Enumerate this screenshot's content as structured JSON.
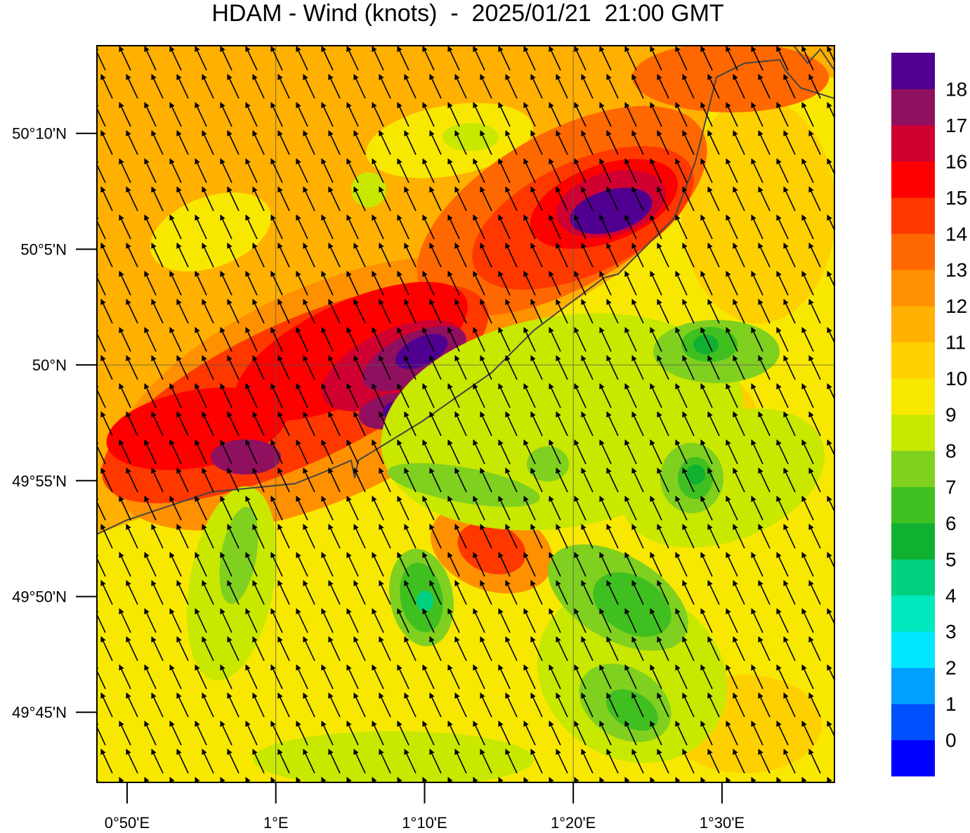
{
  "title": "HDAM - Wind (knots)  -  2025/01/21  21:00 GMT",
  "map": {
    "xlim": [
      0.7995,
      1.626
    ],
    "ylim": [
      49.6995,
      50.2298
    ],
    "xticks": [
      {
        "value": 0.8333,
        "label": "0°50'E"
      },
      {
        "value": 1.0,
        "label": "1°E"
      },
      {
        "value": 1.1667,
        "label": "1°10'E"
      },
      {
        "value": 1.3333,
        "label": "1°20'E"
      },
      {
        "value": 1.5,
        "label": "1°30'E"
      }
    ],
    "yticks": [
      {
        "value": 49.75,
        "label": "49°45'N"
      },
      {
        "value": 49.8333,
        "label": "49°50'N"
      },
      {
        "value": 49.9167,
        "label": "49°55'N"
      },
      {
        "value": 50.0,
        "label": "50°N"
      },
      {
        "value": 50.0833,
        "label": "50°5'N"
      },
      {
        "value": 50.1667,
        "label": "50°10'N"
      }
    ],
    "grid_x": [
      1.0,
      1.3333
    ],
    "grid_y": [
      50.0
    ]
  },
  "colorbar": {
    "levels": [
      0,
      1,
      2,
      3,
      4,
      5,
      6,
      7,
      8,
      9,
      10,
      11,
      12,
      13,
      14,
      15,
      16,
      17,
      18
    ],
    "colors": [
      "#0000ff",
      "#0050ff",
      "#00a0ff",
      "#00e8ff",
      "#00e8c0",
      "#00d080",
      "#10b030",
      "#40c020",
      "#80d020",
      "#c8e800",
      "#f8e800",
      "#ffd000",
      "#ffb000",
      "#ff9000",
      "#ff6800",
      "#ff3800",
      "#ff0000",
      "#d00030",
      "#901060",
      "#500090"
    ]
  }
}
